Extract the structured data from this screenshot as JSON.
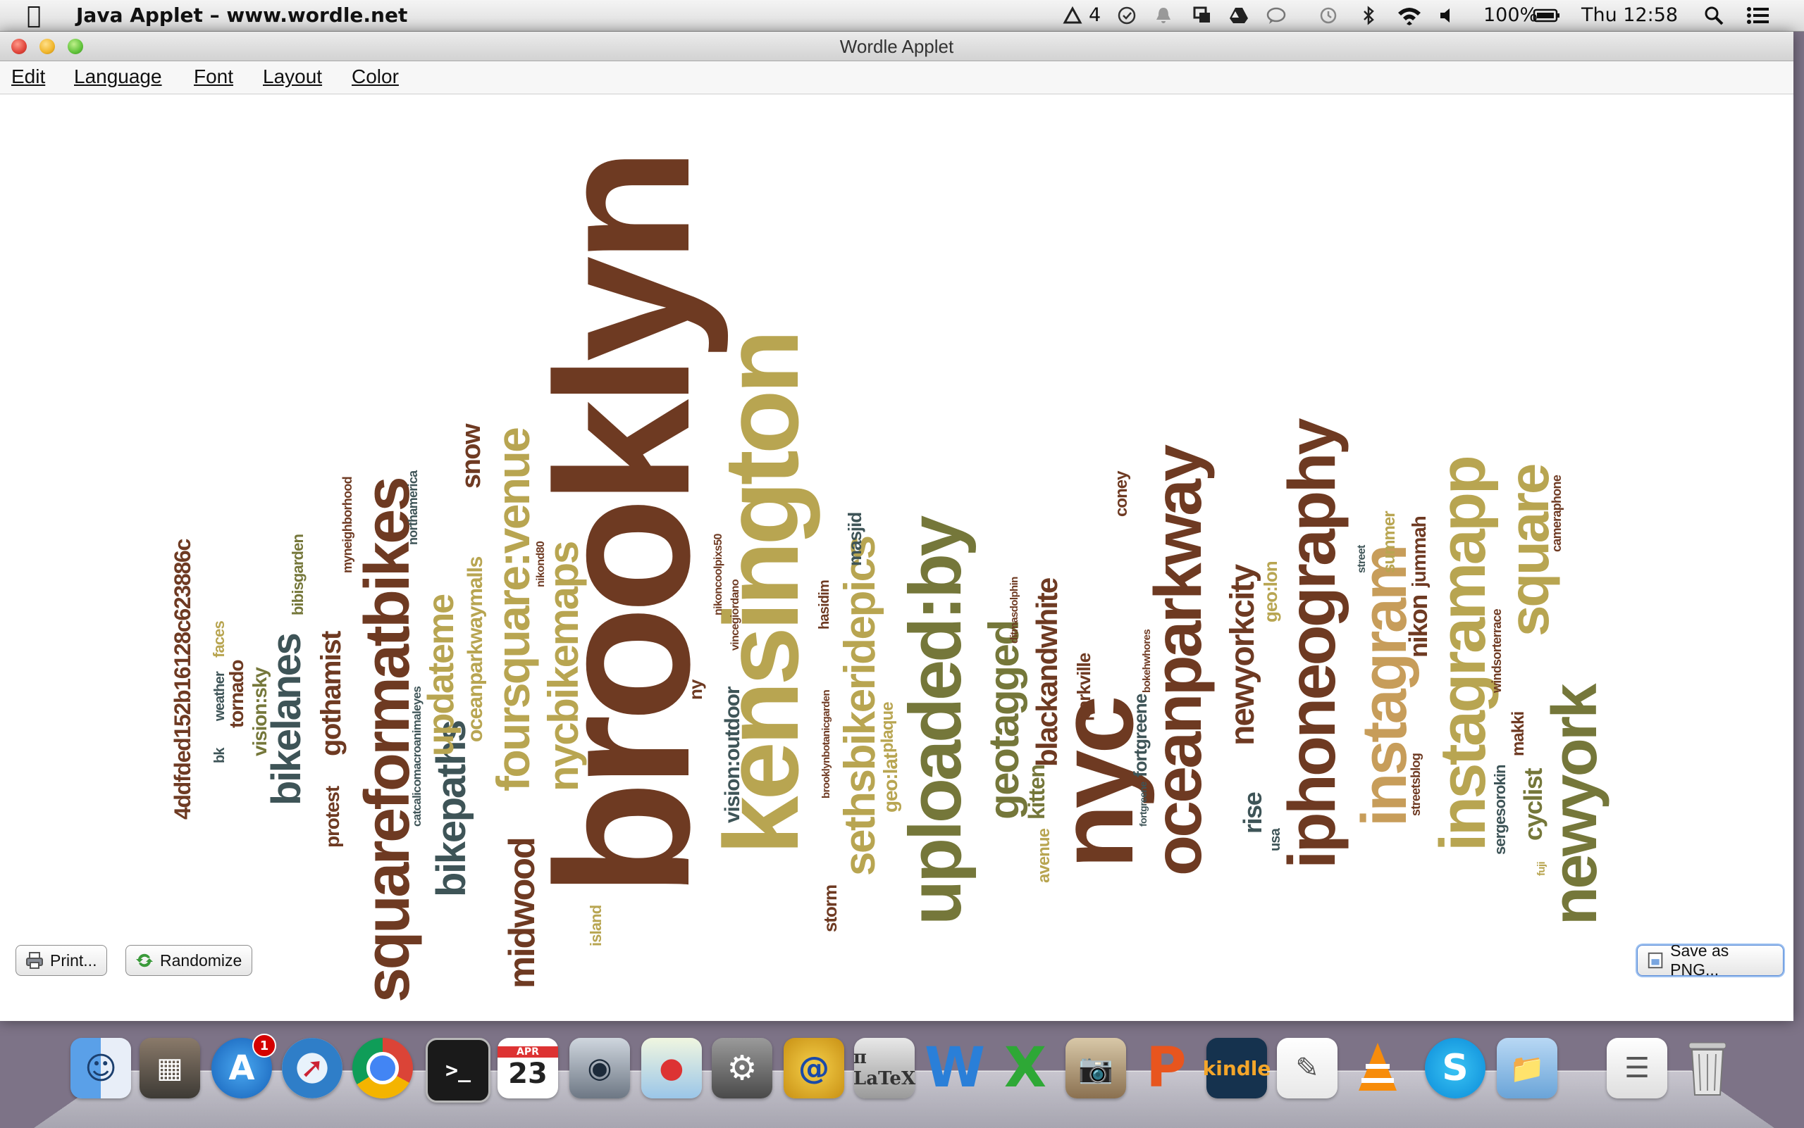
{
  "menubar": {
    "app_name": "Java Applet – www.wordle.net",
    "notification_count": "4",
    "battery": "100%",
    "clock": "Thu 12:58"
  },
  "window": {
    "title": "Wordle Applet",
    "menus": [
      "Edit",
      "Language",
      "Font",
      "Layout",
      "Color"
    ],
    "buttons": {
      "print": "Print...",
      "randomize": "Randomize",
      "save": "Save as PNG..."
    }
  },
  "colors": {
    "brown": "#6e3a22",
    "olive": "#75773a",
    "gold": "#b8a551",
    "slate": "#3e5457",
    "tan": "#c79d5a"
  },
  "wordcloud": [
    {
      "t": "brooklyn",
      "c": "brown"
    },
    {
      "t": "kensington",
      "c": "gold"
    },
    {
      "t": "nyc",
      "c": "brown"
    },
    {
      "t": "uploaded:by",
      "c": "olive"
    },
    {
      "t": "squareformatbikes",
      "c": "brown"
    },
    {
      "t": "oceanparkway",
      "c": "brown"
    },
    {
      "t": "iphoneography",
      "c": "brown"
    },
    {
      "t": "instagramapp",
      "c": "gold"
    },
    {
      "t": "instagram",
      "c": "tan"
    },
    {
      "t": "newyork",
      "c": "olive"
    },
    {
      "t": "square",
      "c": "gold"
    },
    {
      "t": "foursquare:venue",
      "c": "gold"
    },
    {
      "t": "sethsbikeridepics",
      "c": "gold"
    },
    {
      "t": "nycbikemaps",
      "c": "gold"
    },
    {
      "t": "geotagged",
      "c": "olive"
    },
    {
      "t": "bikelanes",
      "c": "slate"
    },
    {
      "t": "bikepaths",
      "c": "slate"
    },
    {
      "t": "midwood",
      "c": "brown"
    },
    {
      "t": "updateme",
      "c": "gold"
    },
    {
      "t": "newyorkcity",
      "c": "brown"
    },
    {
      "t": "blackandwhite",
      "c": "brown"
    },
    {
      "t": "4ddfded152b16128c623886c",
      "c": "brown"
    },
    {
      "t": "gothamist",
      "c": "brown"
    },
    {
      "t": "oceanparkwaymalls",
      "c": "gold"
    },
    {
      "t": "snow",
      "c": "brown"
    },
    {
      "t": "vision:outdoor",
      "c": "slate"
    },
    {
      "t": "vision:sky",
      "c": "olive"
    },
    {
      "t": "tornado",
      "c": "brown"
    },
    {
      "t": "protest",
      "c": "brown"
    },
    {
      "t": "rise",
      "c": "slate"
    },
    {
      "t": "cyclist",
      "c": "olive"
    },
    {
      "t": "nikon",
      "c": "brown"
    },
    {
      "t": "jummah",
      "c": "brown"
    },
    {
      "t": "summer",
      "c": "gold"
    },
    {
      "t": "masjid",
      "c": "slate"
    },
    {
      "t": "geo:lat",
      "c": "gold"
    },
    {
      "t": "geo:lon",
      "c": "gold"
    },
    {
      "t": "kitten",
      "c": "olive"
    },
    {
      "t": "avenue",
      "c": "gold"
    },
    {
      "t": "parkville",
      "c": "brown"
    },
    {
      "t": "fortgreene",
      "c": "slate"
    },
    {
      "t": "island",
      "c": "gold"
    },
    {
      "t": "storm",
      "c": "brown"
    },
    {
      "t": "plaque",
      "c": "gold"
    },
    {
      "t": "makki",
      "c": "brown"
    },
    {
      "t": "sergesorokin",
      "c": "slate"
    },
    {
      "t": "windsorterrace",
      "c": "brown"
    },
    {
      "t": "cameraphone",
      "c": "brown"
    },
    {
      "t": "coney",
      "c": "brown"
    },
    {
      "t": "bibisgarden",
      "c": "olive"
    },
    {
      "t": "faces",
      "c": "gold"
    },
    {
      "t": "weather",
      "c": "slate"
    },
    {
      "t": "bk",
      "c": "slate"
    },
    {
      "t": "myneighborhood",
      "c": "brown"
    },
    {
      "t": "northamerica",
      "c": "slate"
    },
    {
      "t": "catcalicomacroanimaleyes",
      "c": "slate"
    },
    {
      "t": "ny",
      "c": "brown"
    },
    {
      "t": "hasidim",
      "c": "brown"
    },
    {
      "t": "nikond80",
      "c": "brown"
    },
    {
      "t": "nikoncoolpixs50",
      "c": "brown"
    },
    {
      "t": "vincegiordano",
      "c": "brown"
    },
    {
      "t": "usa",
      "c": "slate"
    },
    {
      "t": "streetsblog",
      "c": "brown"
    },
    {
      "t": "fortgreene",
      "c": "slate"
    },
    {
      "t": "ditmasdolphin",
      "c": "brown"
    },
    {
      "t": "bokehwhores",
      "c": "brown"
    },
    {
      "t": "street",
      "c": "slate"
    },
    {
      "t": "brooklynbotanicgarden",
      "c": "brown"
    },
    {
      "t": "fuji",
      "c": "gold"
    }
  ]
}
